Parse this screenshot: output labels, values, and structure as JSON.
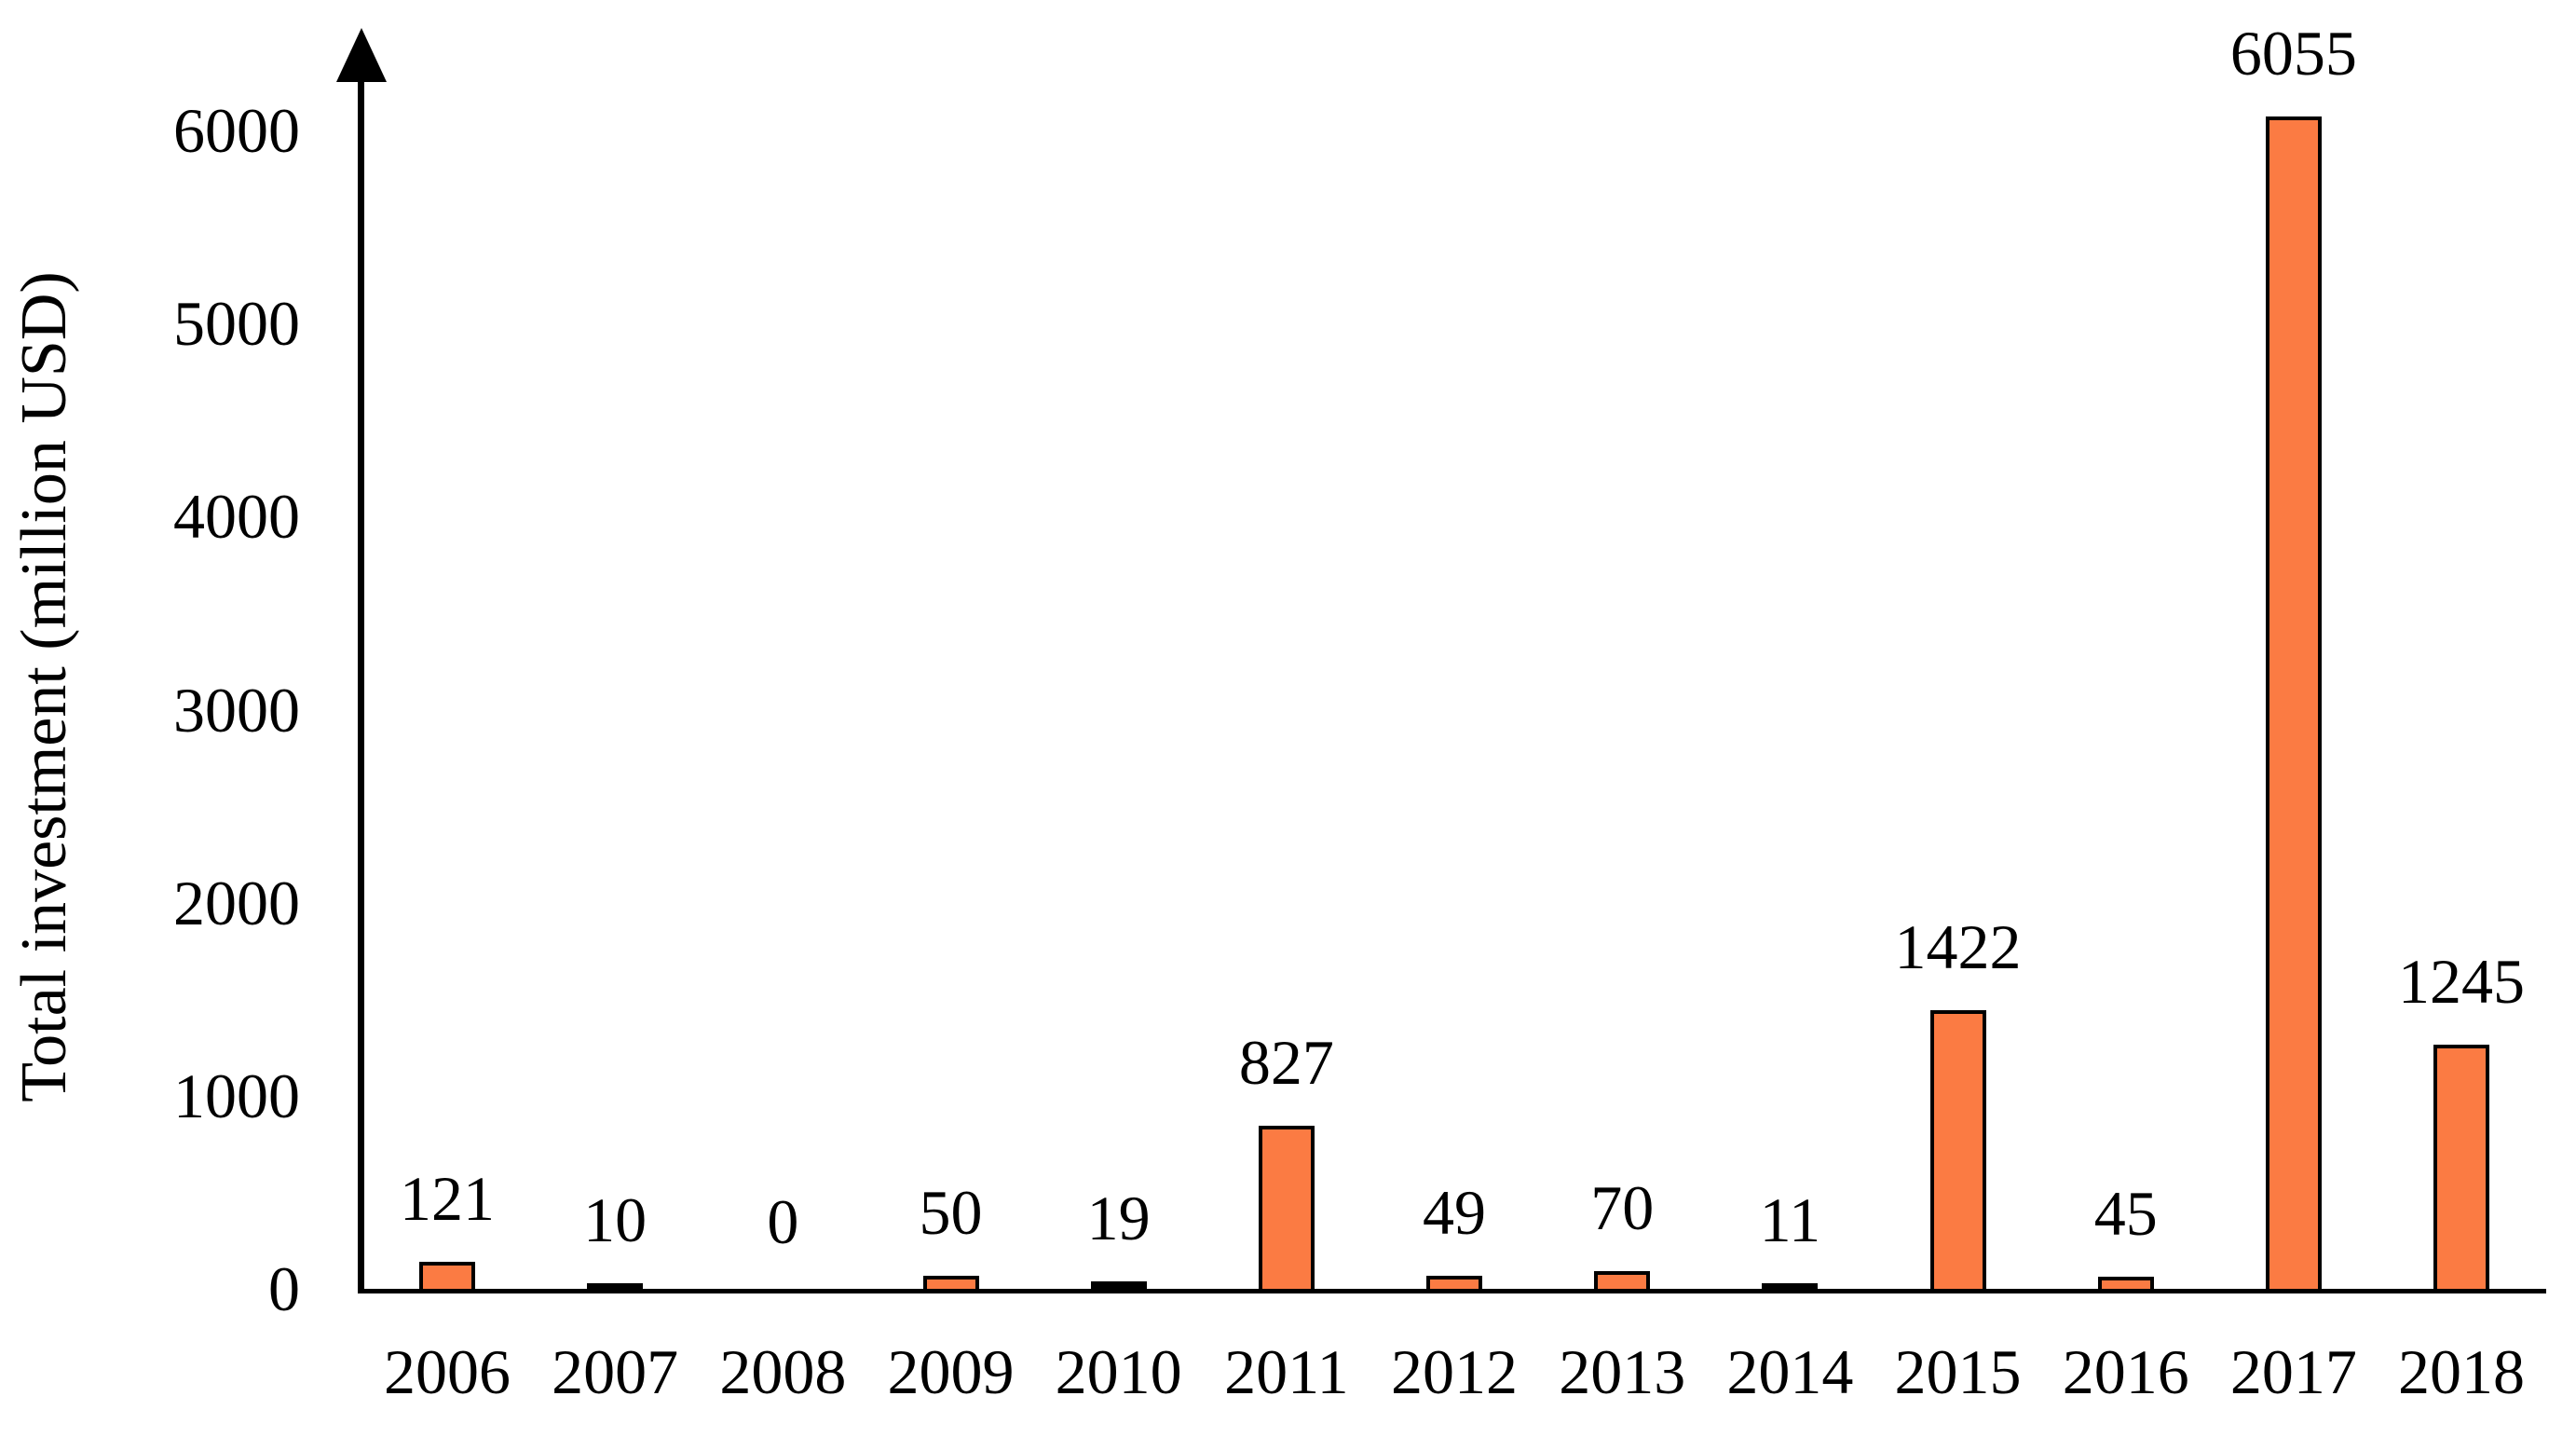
{
  "chart_data": {
    "type": "bar",
    "title": "",
    "xlabel": "",
    "ylabel": "Total investment (million USD)",
    "categories": [
      "2006",
      "2007",
      "2008",
      "2009",
      "2010",
      "2011",
      "2012",
      "2013",
      "2014",
      "2015",
      "2016",
      "2017",
      "2018"
    ],
    "values": [
      121,
      10,
      0,
      50,
      19,
      827,
      49,
      70,
      11,
      1422,
      45,
      6055,
      1245
    ],
    "bar_labels": [
      "121",
      "10",
      "0",
      "50",
      "19",
      "827",
      "49",
      "70",
      "11",
      "1422",
      "45",
      "6055",
      "1245"
    ],
    "yticks": [
      0,
      1000,
      2000,
      3000,
      4000,
      5000,
      6000
    ],
    "ytick_labels": [
      "0",
      "1000",
      "2000",
      "3000",
      "4000",
      "5000",
      "6000"
    ],
    "ylim": [
      0,
      6400
    ],
    "grid": false,
    "legend": null,
    "bar_color": "#fb7b43",
    "bar_border_color": "#000000",
    "axis_color": "#000000",
    "text_color": "#000000",
    "background_color": "#ffffff",
    "y_axis_has_arrow": true
  }
}
